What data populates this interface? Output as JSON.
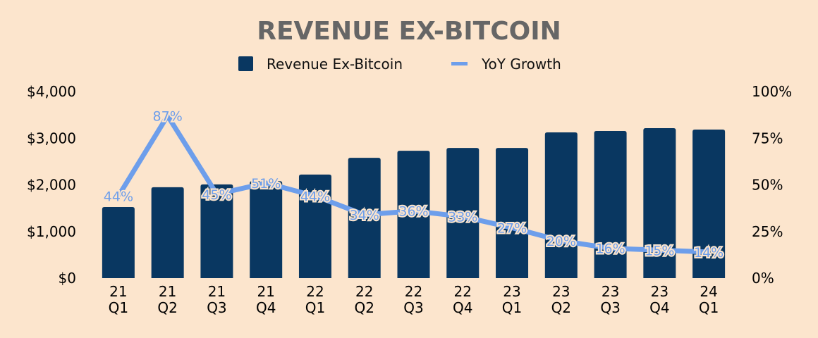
{
  "chart_data": {
    "type": "bar",
    "title": "REVENUE EX-BITCOIN",
    "legend": {
      "placement": "top-center",
      "entries": [
        {
          "name": "Revenue Ex-Bitcoin",
          "color": "#093761",
          "marker": "square"
        },
        {
          "name": "YoY Growth",
          "color": "#6d9eeb",
          "marker": "line"
        }
      ]
    },
    "categories": [
      [
        "21",
        "Q1"
      ],
      [
        "21",
        "Q2"
      ],
      [
        "21",
        "Q3"
      ],
      [
        "21",
        "Q4"
      ],
      [
        "22",
        "Q1"
      ],
      [
        "22",
        "Q2"
      ],
      [
        "22",
        "Q3"
      ],
      [
        "22",
        "Q4"
      ],
      [
        "23",
        "Q1"
      ],
      [
        "23",
        "Q2"
      ],
      [
        "23",
        "Q3"
      ],
      [
        "23",
        "Q4"
      ],
      [
        "24",
        "Q1"
      ]
    ],
    "series": [
      {
        "name": "Revenue Ex-Bitcoin",
        "type": "bar",
        "axis": "left",
        "color": "#093761",
        "values": [
          1525,
          1950,
          2010,
          2080,
          2220,
          2580,
          2730,
          2790,
          2790,
          3125,
          3155,
          3215,
          3185
        ]
      },
      {
        "name": "YoY Growth",
        "type": "line",
        "axis": "right",
        "color": "#6d9eeb",
        "values": [
          44,
          87,
          45,
          51,
          44,
          34,
          36,
          33,
          27,
          20,
          16,
          15,
          14
        ],
        "labels": [
          "44%",
          "87%",
          "45%",
          "51%",
          "44%",
          "34%",
          "36%",
          "33%",
          "27%",
          "20%",
          "16%",
          "15%",
          "14%"
        ]
      }
    ],
    "y_left": {
      "range": [
        0,
        4000
      ],
      "ticks": [
        0,
        1000,
        2000,
        3000,
        4000
      ],
      "tick_labels": [
        "$0",
        "$1,000",
        "$2,000",
        "$3,000",
        "$4,000"
      ]
    },
    "y_right": {
      "range": [
        0,
        100
      ],
      "ticks": [
        0,
        25,
        50,
        75,
        100
      ],
      "tick_labels": [
        "0%",
        "25%",
        "50%",
        "75%",
        "100%"
      ]
    },
    "xlabel": "",
    "ylabel": "",
    "grid": false,
    "background": "#fce5cd"
  }
}
